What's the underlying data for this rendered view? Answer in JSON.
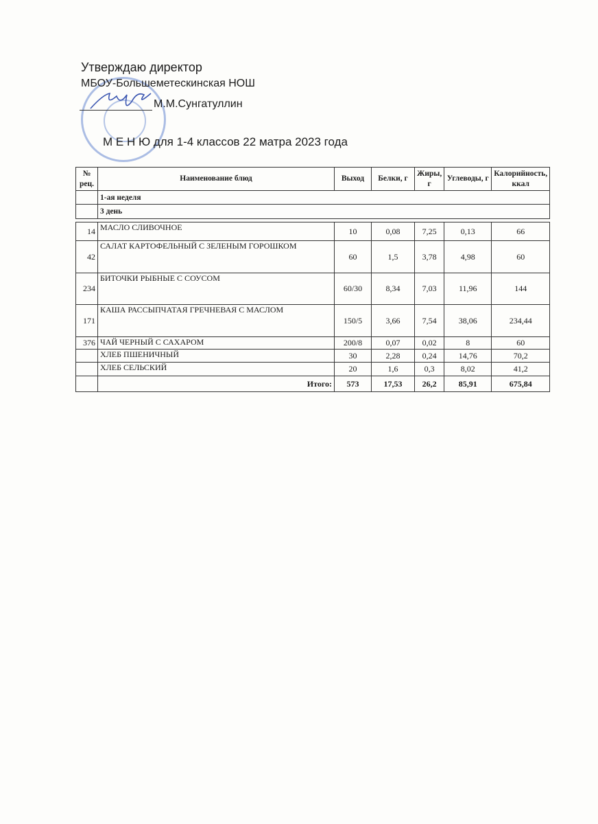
{
  "header": {
    "approve_line": "Утверждаю  директор",
    "school": "МБОУ-Большеметескинская НОШ",
    "director": "М.М.Сунгатуллин",
    "title": "М Е Н Ю  для 1-4 классов 22 матра 2023 года"
  },
  "stamp": {
    "text": "МБОУ Большеметескинская начальная общеобразовательная школа"
  },
  "table": {
    "columns": [
      "№ рец.",
      "Наименование блюд",
      "Выход",
      "Белки, г",
      "Жиры, г",
      "Углеводы, г",
      "Калорийность, ккал"
    ],
    "week": "1-ая неделя",
    "day": "3 день",
    "rows": [
      {
        "no": "14",
        "name": "МАСЛО СЛИВОЧНОЕ",
        "out": "10",
        "prot": "0,08",
        "fat": "7,25",
        "carb": "0,13",
        "kcal": "66"
      },
      {
        "no": "42",
        "name": "САЛАТ КАРТОФЕЛЬНЫЙ С ЗЕЛЕНЫМ ГОРОШКОМ",
        "out": "60",
        "prot": "1,5",
        "fat": "3,78",
        "carb": "4,98",
        "kcal": "60"
      },
      {
        "no": "234",
        "name": "БИТОЧКИ РЫБНЫЕ С СОУСОМ",
        "out": "60/30",
        "prot": "8,34",
        "fat": "7,03",
        "carb": "11,96",
        "kcal": "144"
      },
      {
        "no": "171",
        "name": "КАША РАССЫПЧАТАЯ ГРЕЧНЕВАЯ С МАСЛОМ",
        "out": "150/5",
        "prot": "3,66",
        "fat": "7,54",
        "carb": "38,06",
        "kcal": "234,44"
      },
      {
        "no": "376",
        "name": "ЧАЙ ЧЕРНЫЙ С САХАРОМ",
        "out": "200/8",
        "prot": "0,07",
        "fat": "0,02",
        "carb": "8",
        "kcal": "60"
      },
      {
        "no": "",
        "name": "ХЛЕБ ПШЕНИЧНЫЙ",
        "out": "30",
        "prot": "2,28",
        "fat": "0,24",
        "carb": "14,76",
        "kcal": "70,2"
      },
      {
        "no": "",
        "name": "ХЛЕБ СЕЛЬСКИЙ",
        "out": "20",
        "prot": "1,6",
        "fat": "0,3",
        "carb": "8,02",
        "kcal": "41,2"
      }
    ],
    "total": {
      "label": "Итого:",
      "out": "573",
      "prot": "17,53",
      "fat": "26,2",
      "carb": "85,91",
      "kcal": "675,84"
    }
  }
}
